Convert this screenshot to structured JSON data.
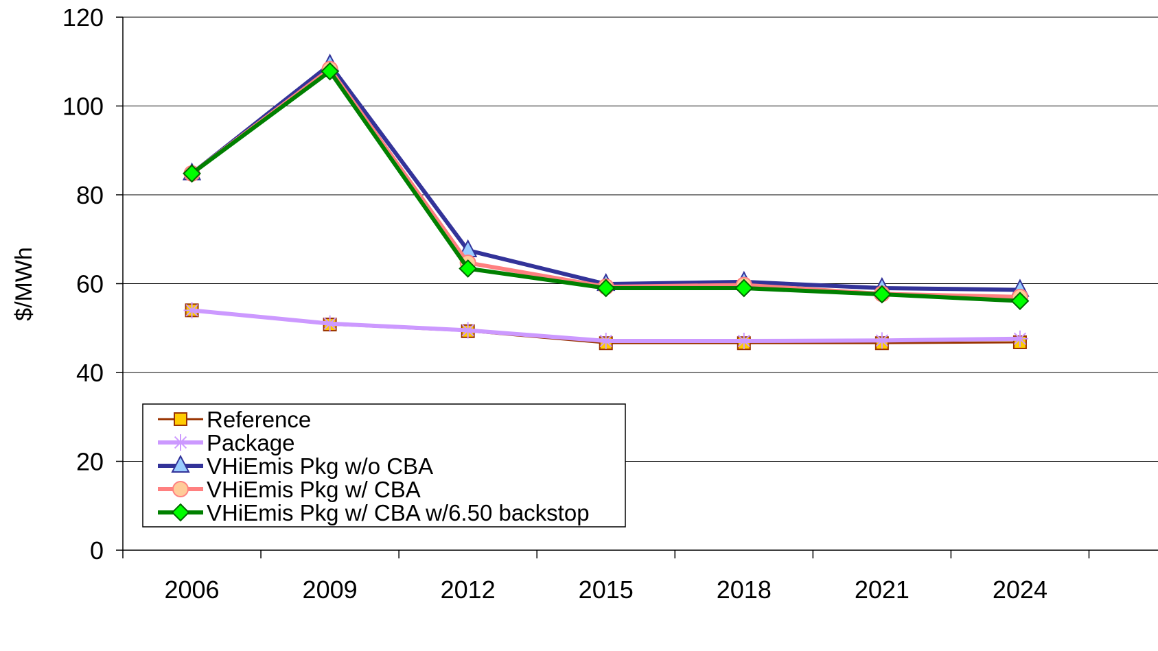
{
  "chart_data": {
    "type": "line",
    "title": "",
    "xlabel": "",
    "ylabel": "$/MWh",
    "categories": [
      "2006",
      "2009",
      "2012",
      "2015",
      "2018",
      "2021",
      "2024"
    ],
    "ylim": [
      0,
      120
    ],
    "yticks": [
      0,
      20,
      40,
      60,
      80,
      100,
      120
    ],
    "grid": "horizontal",
    "legend_position": "bottom-left",
    "series": [
      {
        "name": "Reference",
        "color": "#993300",
        "marker": "square",
        "marker_fill": "#ffcc00",
        "values": [
          54,
          50.8,
          49.3,
          46.6,
          46.6,
          46.6,
          46.8
        ]
      },
      {
        "name": "Package",
        "color": "#cc99ff",
        "marker": "asterisk",
        "marker_fill": "#cc99ff",
        "values": [
          54,
          51,
          49.5,
          47.1,
          47.1,
          47.2,
          47.6
        ]
      },
      {
        "name": "VHiEmis Pkg w/o CBA",
        "color": "#333399",
        "marker": "triangle",
        "marker_fill": "#99ccff",
        "values": [
          84.8,
          109.3,
          67.5,
          59.9,
          60.4,
          59,
          58.6
        ]
      },
      {
        "name": "VHiEmis Pkg w/ CBA",
        "color": "#ff8080",
        "marker": "circle",
        "marker_fill": "#ffcc99",
        "values": [
          84.8,
          108.3,
          64.7,
          59.3,
          59.7,
          57.7,
          57
        ]
      },
      {
        "name": "VHiEmis Pkg w/ CBA w/6.50 backstop",
        "color": "#008000",
        "marker": "diamond",
        "marker_fill": "#00ff00",
        "values": [
          84.8,
          107.8,
          63.4,
          59,
          59,
          57.6,
          56.1
        ]
      }
    ]
  }
}
